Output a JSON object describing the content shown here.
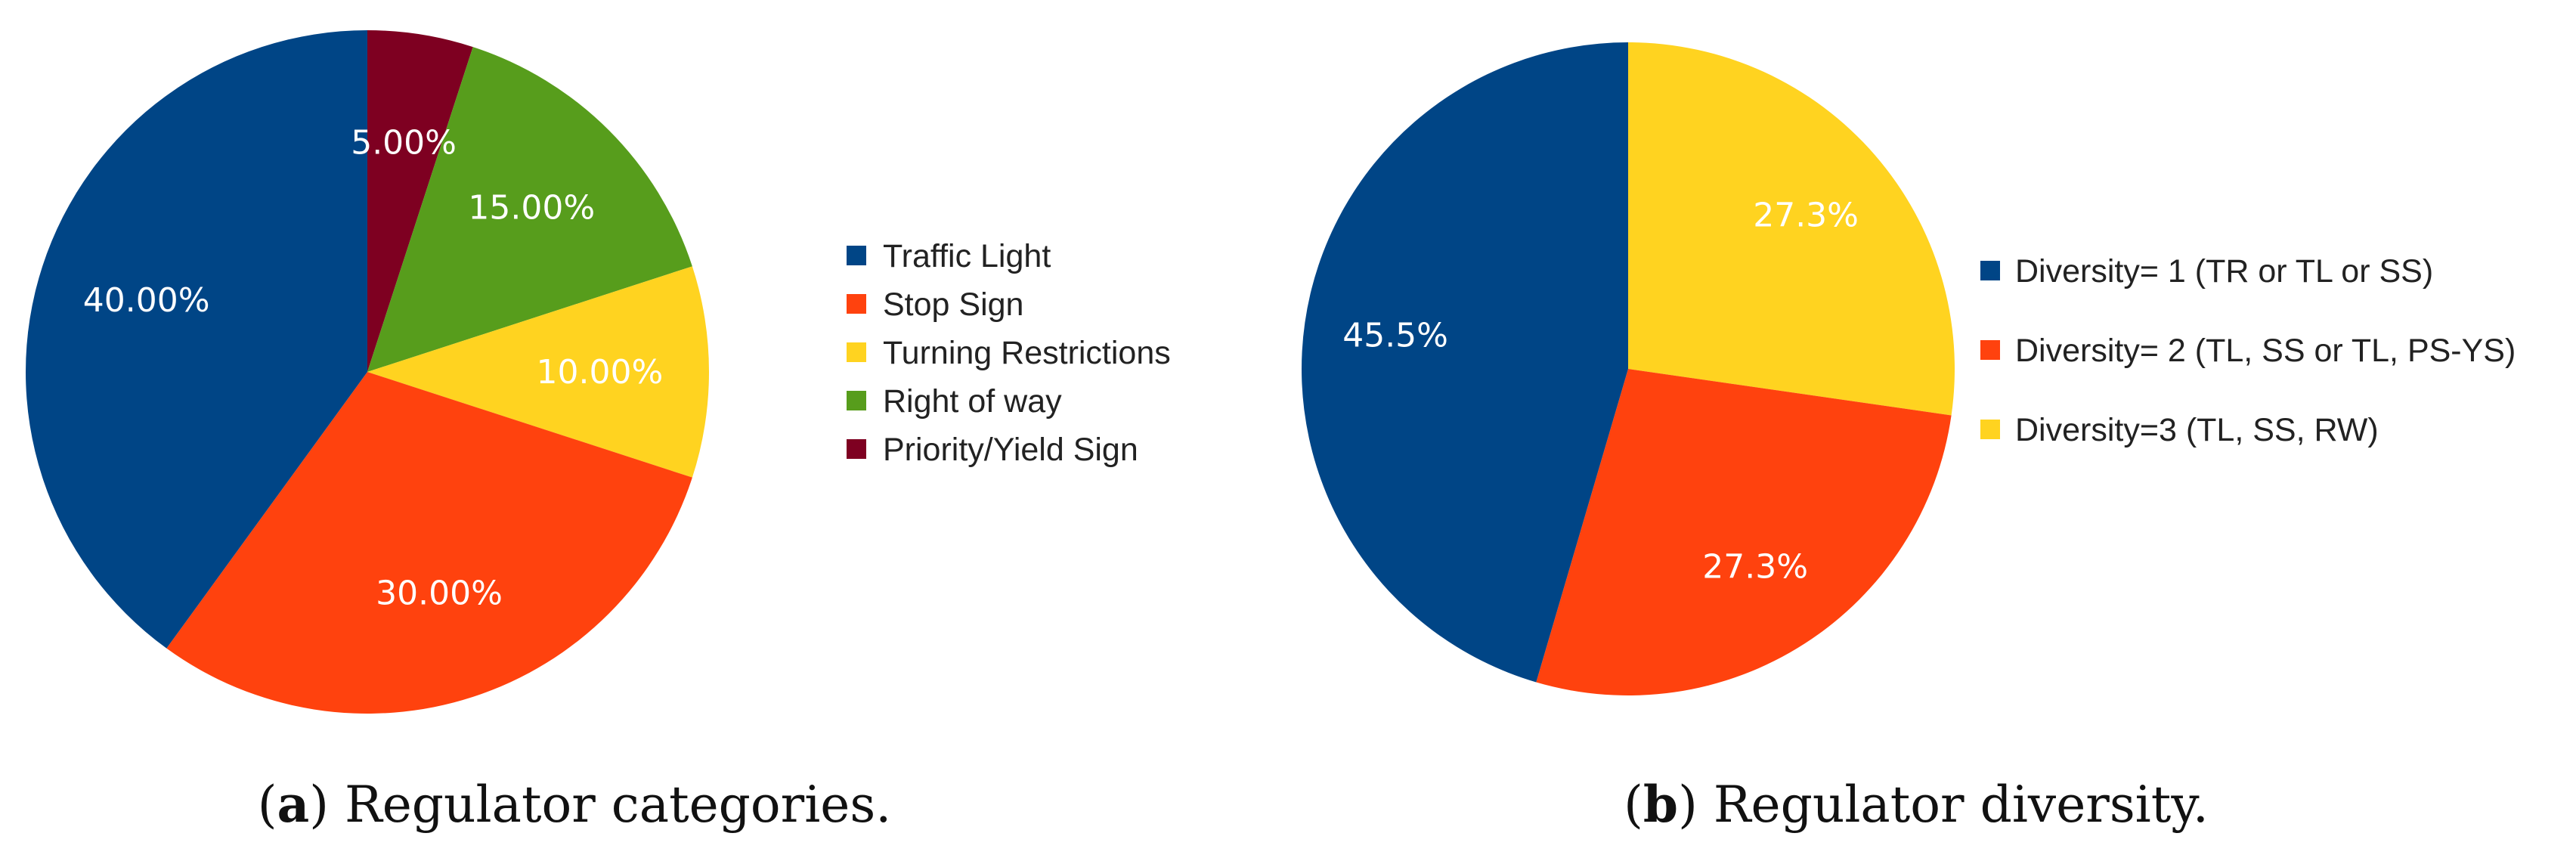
{
  "chart_data": [
    {
      "type": "pie",
      "caption": {
        "letter": "a",
        "text": "Regulator categories."
      },
      "slices": [
        {
          "name": "Traffic Light",
          "value": 40.0,
          "label": "40.00%",
          "color": "#004586"
        },
        {
          "name": "Stop Sign",
          "value": 30.0,
          "label": "30.00%",
          "color": "#ff420e"
        },
        {
          "name": "Turning Restrictions",
          "value": 10.0,
          "label": "10.00%",
          "color": "#ffd320"
        },
        {
          "name": "Right of way",
          "value": 15.0,
          "label": "15.00%",
          "color": "#579d1c"
        },
        {
          "name": "Priority/Yield Sign",
          "value": 5.0,
          "label": "5.00%",
          "color": "#7e0021"
        }
      ],
      "slice_order_clockwise_from_top": [
        "Priority/Yield Sign",
        "Right of way",
        "Turning Restrictions",
        "Stop Sign",
        "Traffic Light"
      ],
      "legend_position": "right"
    },
    {
      "type": "pie",
      "caption": {
        "letter": "b",
        "text": "Regulator diversity."
      },
      "slices": [
        {
          "name": "Diversity= 1 (TR or TL or SS)",
          "value": 45.5,
          "label": "45.5%",
          "color": "#004586"
        },
        {
          "name": "Diversity= 2 (TL, SS or TL, PS-YS)",
          "value": 27.3,
          "label": "27.3%",
          "color": "#ff420e"
        },
        {
          "name": "Diversity=3 (TL, SS, RW)",
          "value": 27.3,
          "label": "27.3%",
          "color": "#ffd320"
        }
      ],
      "slice_order_clockwise_from_top": [
        "Diversity=3 (TL, SS, RW)",
        "Diversity= 2 (TL, SS or TL, PS-YS)",
        "Diversity= 1 (TR or TL or SS)"
      ],
      "legend_position": "right"
    }
  ]
}
